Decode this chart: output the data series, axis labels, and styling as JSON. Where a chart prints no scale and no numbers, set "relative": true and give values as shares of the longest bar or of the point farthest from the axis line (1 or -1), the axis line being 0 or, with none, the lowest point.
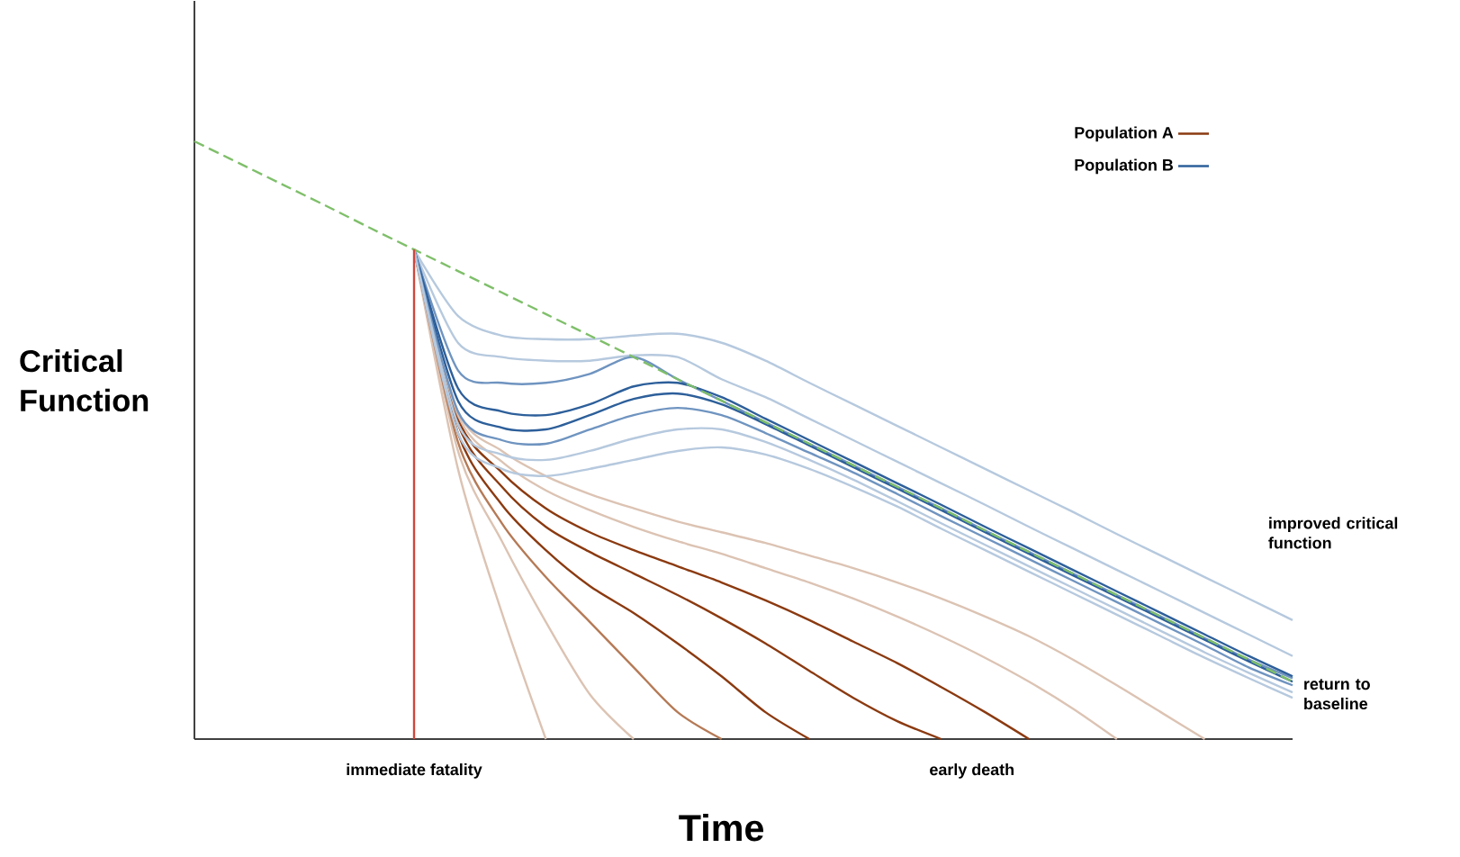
{
  "chart_data": {
    "type": "line",
    "relative": true,
    "xlabel": "Time",
    "ylabel": "Critical Function",
    "legend": "top right",
    "categories": [
      null,
      null,
      null,
      null,
      null,
      null,
      null,
      null,
      null,
      null,
      null,
      null,
      null,
      null,
      null,
      null,
      null,
      null,
      null,
      null,
      null,
      null,
      null,
      null,
      null,
      null
    ],
    "annotations": [
      "immediate fatality",
      "early death",
      "improved critical function",
      "return to baseline"
    ],
    "series": [
      {
        "color": "#dcc3b3",
        "values": [
          null,
          null,
          null,
          null,
          null,
          0.819,
          0.452,
          0.211,
          0,
          null,
          null,
          null,
          null,
          null,
          null,
          null,
          null,
          null,
          null,
          null,
          null,
          null,
          null,
          null,
          null,
          null
        ]
      },
      {
        "color": "#dcc3b3",
        "values": [
          null,
          null,
          null,
          null,
          null,
          0.819,
          0.482,
          0.331,
          0.196,
          0.075,
          0,
          null,
          null,
          null,
          null,
          null,
          null,
          null,
          null,
          null,
          null,
          null,
          null,
          null,
          null,
          null
        ]
      },
      {
        "color": "#b57a56",
        "values": [
          null,
          null,
          null,
          null,
          null,
          0.819,
          0.497,
          0.361,
          0.271,
          0.196,
          0.12,
          0.045,
          0,
          null,
          null,
          null,
          null,
          null,
          null,
          null,
          null,
          null,
          null,
          null,
          null,
          null
        ]
      },
      {
        "name": "Population A",
        "color": "#8b3a10",
        "values": [
          null,
          null,
          null,
          null,
          null,
          0.819,
          0.512,
          0.392,
          0.316,
          0.256,
          0.211,
          0.16,
          0.105,
          0.045,
          0,
          null,
          null,
          null,
          null,
          null,
          null,
          null,
          null,
          null,
          null,
          null
        ]
      },
      {
        "color": "#8b3a10",
        "values": [
          null,
          null,
          null,
          null,
          null,
          0.819,
          0.527,
          0.422,
          0.355,
          0.313,
          0.277,
          0.241,
          0.202,
          0.16,
          0.114,
          0.069,
          0.03,
          0,
          null,
          null,
          null,
          null,
          null,
          null,
          null,
          null
        ]
      },
      {
        "color": "#8b3a10",
        "values": [
          null,
          null,
          null,
          null,
          null,
          0.819,
          0.536,
          0.446,
          0.386,
          0.346,
          0.316,
          0.289,
          0.262,
          0.232,
          0.199,
          0.163,
          0.127,
          0.087,
          0.045,
          0,
          null,
          null,
          null,
          null,
          null,
          null
        ]
      },
      {
        "color": "#dcc3b3",
        "values": [
          null,
          null,
          null,
          null,
          null,
          0.819,
          0.542,
          0.464,
          0.416,
          0.383,
          0.355,
          0.331,
          0.31,
          0.286,
          0.262,
          0.235,
          0.205,
          0.172,
          0.136,
          0.096,
          0.051,
          0,
          null,
          null,
          null,
          null
        ]
      },
      {
        "color": "#dcc3b3",
        "values": [
          null,
          null,
          null,
          null,
          null,
          0.819,
          0.548,
          0.482,
          0.44,
          0.41,
          0.386,
          0.364,
          0.346,
          0.328,
          0.307,
          0.286,
          0.262,
          0.235,
          0.205,
          0.172,
          0.133,
          0.09,
          0.045,
          0,
          null,
          null
        ]
      },
      {
        "color": "#b6c9de",
        "values": [
          null,
          null,
          null,
          null,
          null,
          0.819,
          0.708,
          0.675,
          0.669,
          0.669,
          0.675,
          0.678,
          0.663,
          0.633,
          0.596,
          0.56,
          0.524,
          0.488,
          0.452,
          0.416,
          0.38,
          0.343,
          0.307,
          0.271,
          0.235,
          0.199
        ]
      },
      {
        "color": "#b6c9de",
        "values": [
          null,
          null,
          null,
          null,
          null,
          0.819,
          0.663,
          0.639,
          0.633,
          0.633,
          0.642,
          0.639,
          0.602,
          0.572,
          0.536,
          0.5,
          0.464,
          0.428,
          0.392,
          0.355,
          0.319,
          0.283,
          0.247,
          0.211,
          0.175,
          0.139
        ]
      },
      {
        "color": "#6f94c0",
        "values": [
          null,
          null,
          null,
          null,
          null,
          0.819,
          0.617,
          0.596,
          0.596,
          0.611,
          0.639,
          0.602,
          0.566,
          0.53,
          0.494,
          0.458,
          0.422,
          0.386,
          0.349,
          0.313,
          0.277,
          0.241,
          0.205,
          0.169,
          0.133,
          0.102
        ]
      },
      {
        "name": "Population B",
        "color": "#2d5f9a",
        "values": [
          null,
          null,
          null,
          null,
          null,
          0.819,
          0.587,
          0.548,
          0.542,
          0.56,
          0.59,
          0.596,
          0.572,
          0.536,
          0.5,
          0.464,
          0.428,
          0.392,
          0.355,
          0.319,
          0.283,
          0.247,
          0.211,
          0.175,
          0.139,
          0.105
        ]
      },
      {
        "color": "#2d5f9a",
        "values": [
          null,
          null,
          null,
          null,
          null,
          0.819,
          0.566,
          0.521,
          0.518,
          0.542,
          0.569,
          0.578,
          0.56,
          0.527,
          0.491,
          0.455,
          0.419,
          0.383,
          0.346,
          0.31,
          0.274,
          0.238,
          0.202,
          0.166,
          0.13,
          0.096
        ]
      },
      {
        "color": "#6f94c0",
        "values": [
          null,
          null,
          null,
          null,
          null,
          0.819,
          0.548,
          0.5,
          0.494,
          0.518,
          0.542,
          0.554,
          0.542,
          0.512,
          0.479,
          0.446,
          0.41,
          0.373,
          0.337,
          0.301,
          0.265,
          0.229,
          0.193,
          0.157,
          0.12,
          0.09
        ]
      },
      {
        "color": "#b6c9de",
        "values": [
          null,
          null,
          null,
          null,
          null,
          0.819,
          0.527,
          0.476,
          0.467,
          0.482,
          0.503,
          0.518,
          0.518,
          0.497,
          0.467,
          0.434,
          0.398,
          0.361,
          0.325,
          0.289,
          0.253,
          0.217,
          0.181,
          0.145,
          0.111,
          0.078
        ]
      },
      {
        "color": "#b6c9de",
        "values": [
          null,
          null,
          null,
          null,
          null,
          0.819,
          0.512,
          0.452,
          0.44,
          0.452,
          0.467,
          0.482,
          0.488,
          0.476,
          0.452,
          0.422,
          0.389,
          0.352,
          0.316,
          0.28,
          0.244,
          0.208,
          0.172,
          0.136,
          0.102,
          0.069
        ]
      },
      {
        "color": "#7fbf6a",
        "line_style": "dashed",
        "values": [
          1.0,
          0.964,
          0.928,
          0.892,
          0.855,
          0.819,
          0.783,
          0.747,
          0.711,
          0.675,
          0.639,
          0.602,
          0.566,
          0.53,
          0.494,
          0.458,
          0.422,
          0.386,
          0.349,
          0.313,
          0.277,
          0.241,
          0.205,
          0.169,
          0.133,
          0.096
        ]
      }
    ]
  }
}
